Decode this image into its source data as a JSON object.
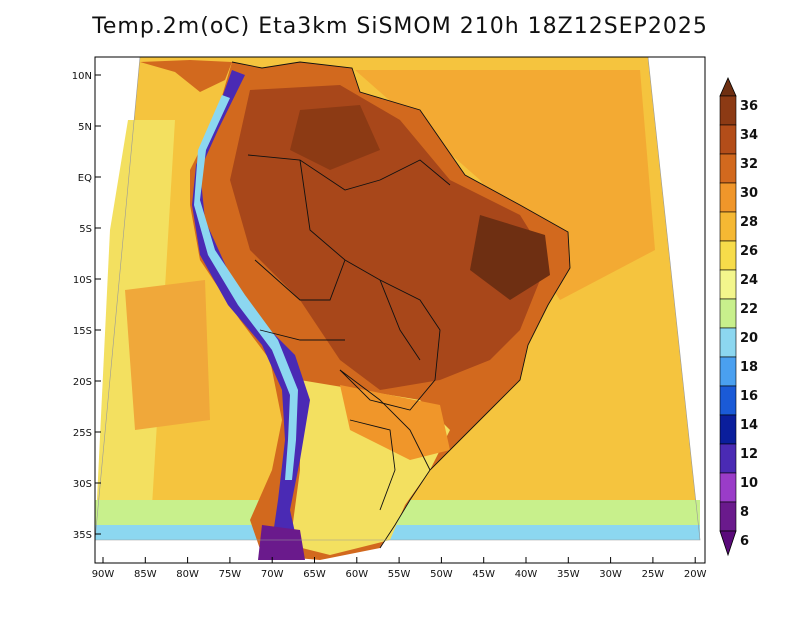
{
  "title": "Temp.2m(oC) Eta3km SiSMOM 210h 18Z12SEP2025",
  "lat_labels": [
    "10N",
    "5N",
    "EQ",
    "5S",
    "10S",
    "15S",
    "20S",
    "25S",
    "30S",
    "35S"
  ],
  "lon_labels": [
    "90W",
    "85W",
    "80W",
    "75W",
    "70W",
    "65W",
    "60W",
    "55W",
    "50W",
    "45W",
    "40W",
    "35W",
    "30W",
    "25W",
    "20W"
  ],
  "colorbar": {
    "labels": [
      "36",
      "34",
      "32",
      "30",
      "28",
      "26",
      "24",
      "22",
      "20",
      "18",
      "16",
      "14",
      "12",
      "10",
      "8",
      "6"
    ],
    "colors": [
      "#6e2f12",
      "#8c3a14",
      "#b34d19",
      "#d2691e",
      "#f0962a",
      "#f5b833",
      "#f7dc4a",
      "#f3f68c",
      "#c8f08c",
      "#8cd7f0",
      "#4aa0f0",
      "#1a5ad7",
      "#0a1e9c",
      "#4a2ab4",
      "#9a3cc8",
      "#6a1a8c",
      "#5a0a7a"
    ]
  },
  "map_colors": {
    "ocean_warm": "#f0b43a",
    "ocean_mid": "#f5cc40",
    "ocean_cool": "#f7dc4a",
    "ocean_cold": "#c8f08c",
    "land_hot": "#b34d19",
    "land_warm": "#d2691e",
    "andes": "#4a2ab4"
  }
}
